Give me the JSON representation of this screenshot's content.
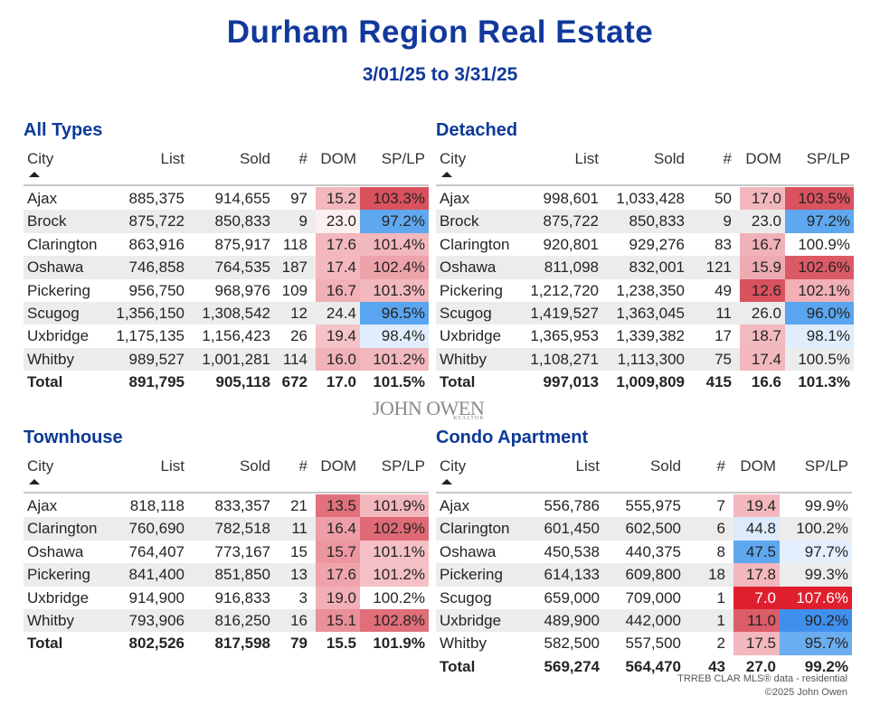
{
  "header": {
    "title": "Durham Region Real Estate",
    "date_range": "3/01/25  to  3/31/25"
  },
  "columns": {
    "city": "City",
    "list": "List",
    "sold": "Sold",
    "count": "#",
    "dom": "DOM",
    "splp": "SP/LP"
  },
  "colors": {
    "title": "#11399c",
    "alt_row": "#ececec"
  },
  "tables": [
    {
      "title": "All Types",
      "rows": [
        {
          "city": "Ajax",
          "list": "885,375",
          "sold": "914,655",
          "count": "97",
          "dom": "15.2",
          "splp": "103.3%",
          "dom_bg": "#f2b8bd",
          "splp_bg": "#d9525e"
        },
        {
          "city": "Brock",
          "list": "875,722",
          "sold": "850,833",
          "count": "9",
          "dom": "23.0",
          "splp": "97.2%",
          "dom_bg": "#fbeff0",
          "splp_bg": "#5fa8ef"
        },
        {
          "city": "Clarington",
          "list": "863,916",
          "sold": "875,917",
          "count": "118",
          "dom": "17.6",
          "splp": "101.4%",
          "dom_bg": "#f2b8bd",
          "splp_bg": "#f2b8bd"
        },
        {
          "city": "Oshawa",
          "list": "746,858",
          "sold": "764,535",
          "count": "187",
          "dom": "17.4",
          "splp": "102.4%",
          "dom_bg": "#f2b8bd",
          "splp_bg": "#eda3aa"
        },
        {
          "city": "Pickering",
          "list": "956,750",
          "sold": "968,976",
          "count": "109",
          "dom": "16.7",
          "splp": "101.3%",
          "dom_bg": "#f0b0b6",
          "splp_bg": "#f2b8bd"
        },
        {
          "city": "Scugog",
          "list": "1,356,150",
          "sold": "1,308,542",
          "count": "12",
          "dom": "24.4",
          "splp": "96.5%",
          "dom_bg": "",
          "splp_bg": "#5aa5ef"
        },
        {
          "city": "Uxbridge",
          "list": "1,175,135",
          "sold": "1,156,423",
          "count": "26",
          "dom": "19.4",
          "splp": "98.4%",
          "dom_bg": "#f4c3c7",
          "splp_bg": "#dfedfc"
        },
        {
          "city": "Whitby",
          "list": "989,527",
          "sold": "1,001,281",
          "count": "114",
          "dom": "16.0",
          "splp": "101.2%",
          "dom_bg": "#f0b2b8",
          "splp_bg": "#f2b8bd"
        }
      ],
      "total": {
        "city": "Total",
        "list": "891,795",
        "sold": "905,118",
        "count": "672",
        "dom": "17.0",
        "splp": "101.5%"
      }
    },
    {
      "title": "Detached",
      "rows": [
        {
          "city": "Ajax",
          "list": "998,601",
          "sold": "1,033,428",
          "count": "50",
          "dom": "17.0",
          "splp": "103.5%",
          "dom_bg": "#f2b8bd",
          "splp_bg": "#d9525e"
        },
        {
          "city": "Brock",
          "list": "875,722",
          "sold": "850,833",
          "count": "9",
          "dom": "23.0",
          "splp": "97.2%",
          "dom_bg": "",
          "splp_bg": "#5fa8ef"
        },
        {
          "city": "Clarington",
          "list": "920,801",
          "sold": "929,276",
          "count": "83",
          "dom": "16.7",
          "splp": "100.9%",
          "dom_bg": "#f0b2b8",
          "splp_bg": ""
        },
        {
          "city": "Oshawa",
          "list": "811,098",
          "sold": "832,001",
          "count": "121",
          "dom": "15.9",
          "splp": "102.6%",
          "dom_bg": "#eeaab1",
          "splp_bg": "#db5a66"
        },
        {
          "city": "Pickering",
          "list": "1,212,720",
          "sold": "1,238,350",
          "count": "49",
          "dom": "12.6",
          "splp": "102.1%",
          "dom_bg": "#d9525e",
          "splp_bg": "#f0b0b6"
        },
        {
          "city": "Scugog",
          "list": "1,419,527",
          "sold": "1,363,045",
          "count": "11",
          "dom": "26.0",
          "splp": "96.0%",
          "dom_bg": "",
          "splp_bg": "#5aa5ef"
        },
        {
          "city": "Uxbridge",
          "list": "1,365,953",
          "sold": "1,339,382",
          "count": "17",
          "dom": "18.7",
          "splp": "98.1%",
          "dom_bg": "#f2babf",
          "splp_bg": "#dfedfc"
        },
        {
          "city": "Whitby",
          "list": "1,108,271",
          "sold": "1,113,300",
          "count": "75",
          "dom": "17.4",
          "splp": "100.5%",
          "dom_bg": "#f2b8bd",
          "splp_bg": ""
        }
      ],
      "total": {
        "city": "Total",
        "list": "997,013",
        "sold": "1,009,809",
        "count": "415",
        "dom": "16.6",
        "splp": "101.3%"
      }
    },
    {
      "title": "Townhouse",
      "rows": [
        {
          "city": "Ajax",
          "list": "818,118",
          "sold": "833,357",
          "count": "21",
          "dom": "13.5",
          "splp": "101.9%",
          "dom_bg": "#e0717c",
          "splp_bg": "#f2b8bd"
        },
        {
          "city": "Clarington",
          "list": "760,690",
          "sold": "782,518",
          "count": "11",
          "dom": "16.4",
          "splp": "102.9%",
          "dom_bg": "#ee9ea6",
          "splp_bg": "#df6a76"
        },
        {
          "city": "Oshawa",
          "list": "764,407",
          "sold": "773,167",
          "count": "15",
          "dom": "15.7",
          "splp": "101.1%",
          "dom_bg": "#ec97a0",
          "splp_bg": "#f4c0c5"
        },
        {
          "city": "Pickering",
          "list": "841,400",
          "sold": "851,850",
          "count": "13",
          "dom": "17.6",
          "splp": "101.2%",
          "dom_bg": "#efa4ab",
          "splp_bg": "#f4c0c5"
        },
        {
          "city": "Uxbridge",
          "list": "914,900",
          "sold": "916,833",
          "count": "3",
          "dom": "19.0",
          "splp": "100.2%",
          "dom_bg": "#f2b0b6",
          "splp_bg": ""
        },
        {
          "city": "Whitby",
          "list": "793,906",
          "sold": "816,250",
          "count": "16",
          "dom": "15.1",
          "splp": "102.8%",
          "dom_bg": "#ea909a",
          "splp_bg": "#e06f7a"
        }
      ],
      "total": {
        "city": "Total",
        "list": "802,526",
        "sold": "817,598",
        "count": "79",
        "dom": "15.5",
        "splp": "101.9%"
      }
    },
    {
      "title": "Condo Apartment",
      "rows": [
        {
          "city": "Ajax",
          "list": "556,786",
          "sold": "555,975",
          "count": "7",
          "dom": "19.4",
          "splp": "99.9%",
          "dom_bg": "#f2b8bd",
          "splp_bg": ""
        },
        {
          "city": "Clarington",
          "list": "601,450",
          "sold": "602,500",
          "count": "6",
          "dom": "44.8",
          "splp": "100.2%",
          "dom_bg": "#dcebfb",
          "splp_bg": ""
        },
        {
          "city": "Oshawa",
          "list": "450,538",
          "sold": "440,375",
          "count": "8",
          "dom": "47.5",
          "splp": "97.7%",
          "dom_bg": "#5fa8ef",
          "splp_bg": "#e3effc"
        },
        {
          "city": "Pickering",
          "list": "614,133",
          "sold": "609,800",
          "count": "18",
          "dom": "17.8",
          "splp": "99.3%",
          "dom_bg": "#f2b8bd",
          "splp_bg": ""
        },
        {
          "city": "Scugog",
          "list": "659,000",
          "sold": "709,000",
          "count": "1",
          "dom": "7.0",
          "splp": "107.6%",
          "dom_bg": "#e01f2e",
          "splp_bg": "#e01f2e",
          "white": true
        },
        {
          "city": "Uxbridge",
          "list": "489,900",
          "sold": "442,000",
          "count": "1",
          "dom": "11.0",
          "splp": "90.2%",
          "dom_bg": "#db5d69",
          "splp_bg": "#3f90ee"
        },
        {
          "city": "Whitby",
          "list": "582,500",
          "sold": "557,500",
          "count": "2",
          "dom": "17.5",
          "splp": "95.7%",
          "dom_bg": "#f2b8bd",
          "splp_bg": "#6aaef1"
        }
      ],
      "total": {
        "city": "Total",
        "list": "569,274",
        "sold": "564,470",
        "count": "43",
        "dom": "27.0",
        "splp": "99.2%"
      }
    }
  ],
  "logo": {
    "name": "JOHN OWEN",
    "tagline": "REALTOR"
  },
  "footer": {
    "source": "TRREB CLAR MLS® data - residential",
    "copyright": "©2025 John Owen"
  }
}
